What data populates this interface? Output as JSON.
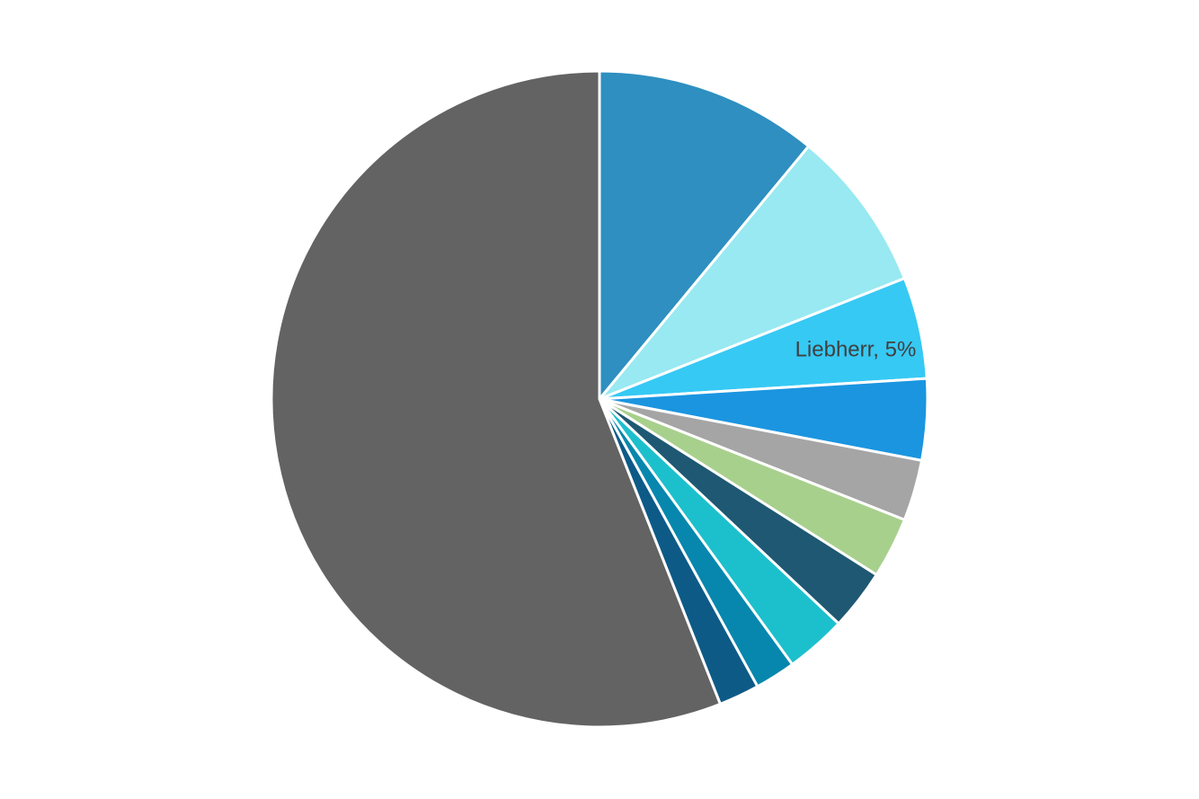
{
  "chart_data": {
    "type": "pie",
    "values": [
      11,
      8,
      5,
      4,
      3,
      3,
      3,
      3,
      2,
      2,
      56
    ],
    "value_labels": [
      null,
      null,
      "Liebherr, 5%",
      null,
      null,
      null,
      null,
      null,
      null,
      null,
      null
    ],
    "colors": [
      "#2e8fc0",
      "#98e9f1",
      "#36c9f4",
      "#1b95e0",
      "#a5a5a5",
      "#a8d08d",
      "#1f5873",
      "#1cc0cc",
      "#0787ad",
      "#0e5a87",
      "#636363"
    ]
  }
}
